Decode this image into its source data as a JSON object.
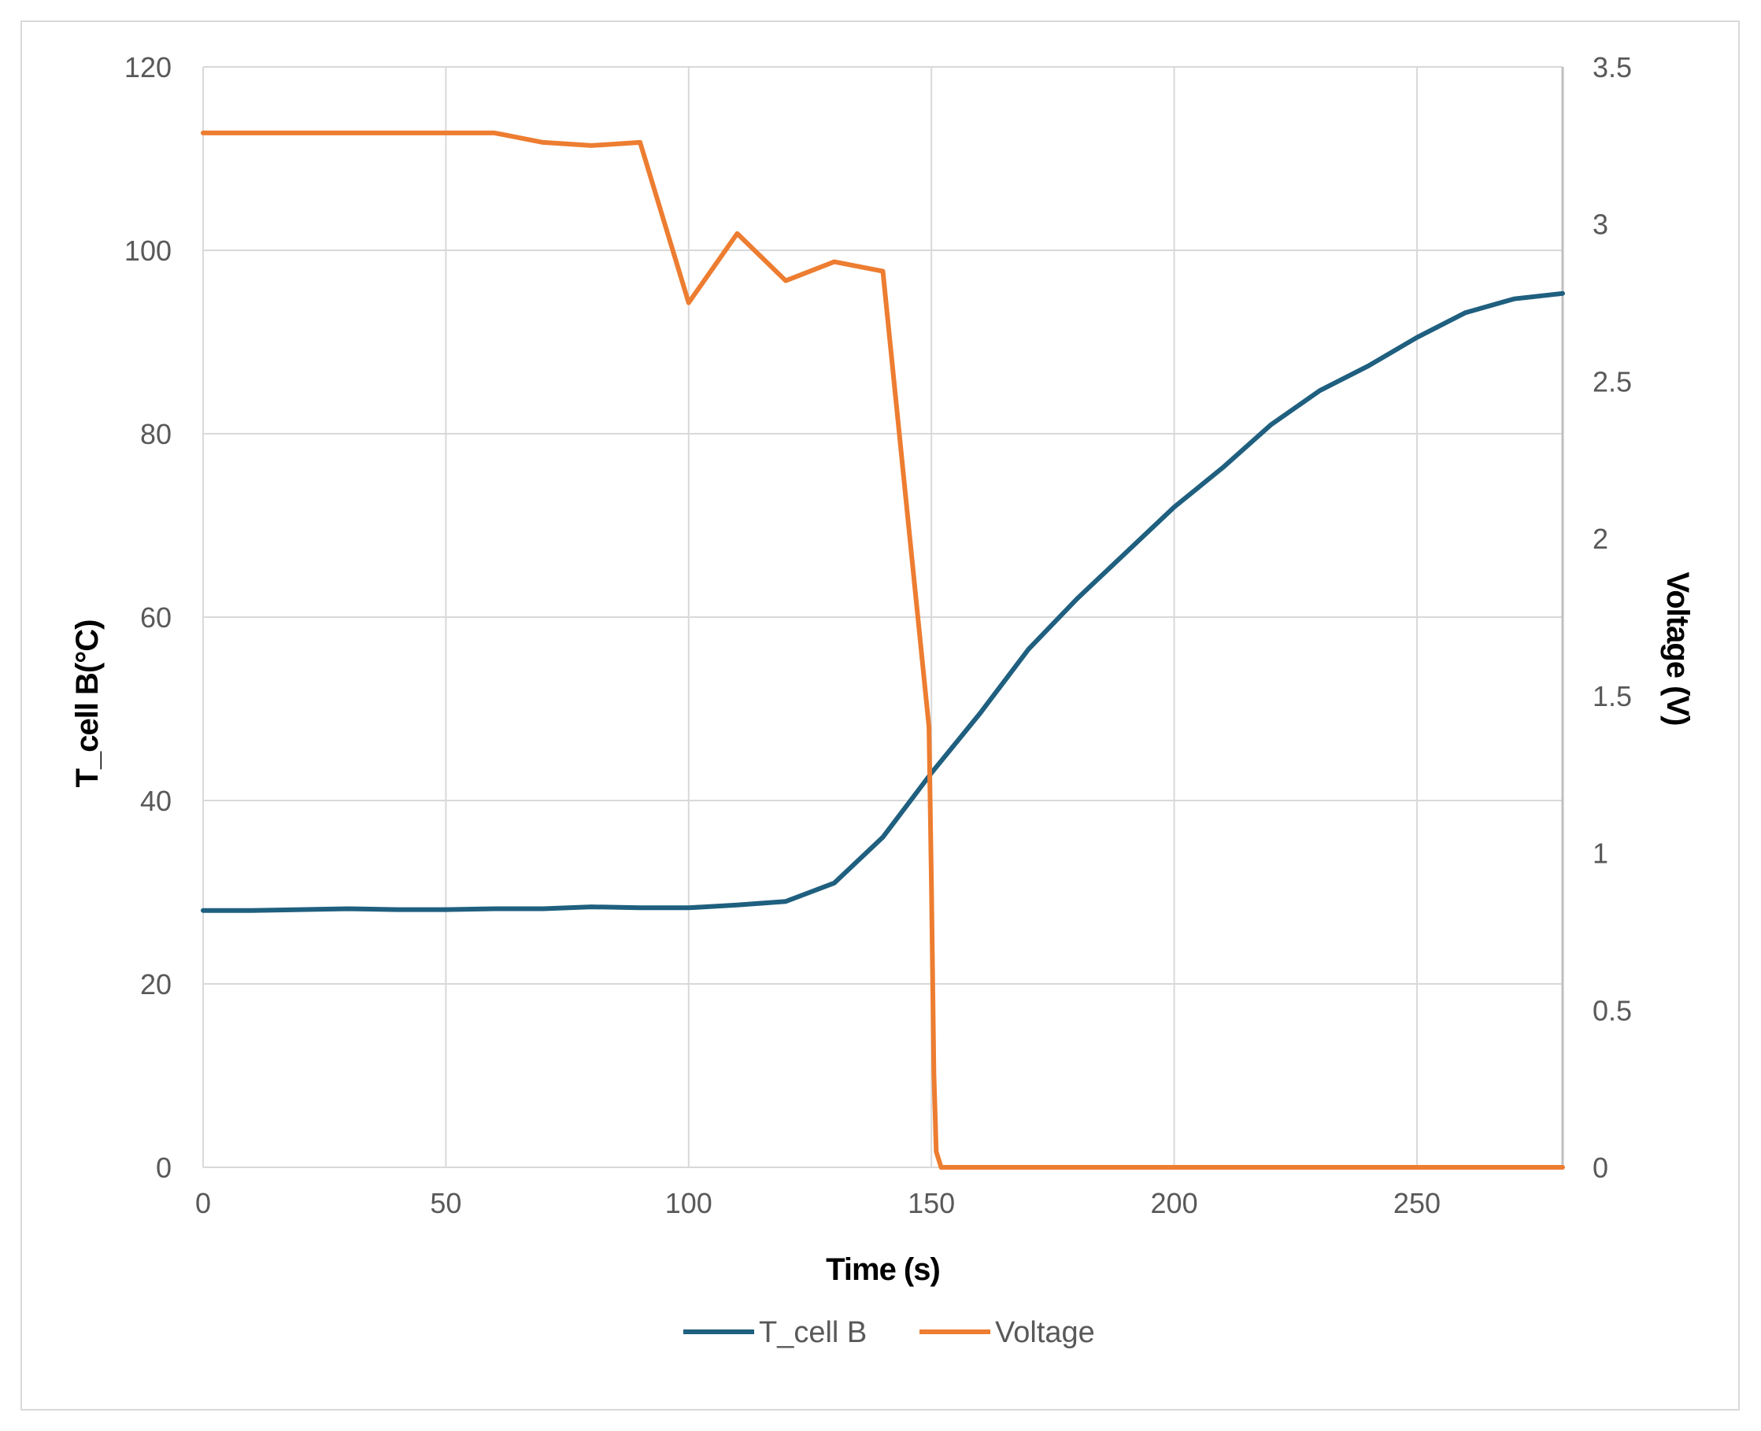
{
  "chart_data": {
    "type": "line",
    "title": "",
    "xlabel": "Time (s)",
    "ylabel": "T_cell B(°C)",
    "y2label": "Voltage (V)",
    "xlim": [
      0,
      280
    ],
    "ylim": [
      0,
      120
    ],
    "y2lim": [
      0,
      3.5
    ],
    "xticks": [
      0,
      50,
      100,
      150,
      200,
      250
    ],
    "yticks": [
      0,
      20,
      40,
      60,
      80,
      100,
      120
    ],
    "y2ticks": [
      "0",
      "0.5",
      "1",
      "1.5",
      "2",
      "2.5",
      "3",
      "3.5"
    ],
    "grid": true,
    "legend_position": "bottom",
    "series": [
      {
        "name": "T_cell B",
        "axis": "left",
        "color": "#1f5f7f",
        "x": [
          0,
          10,
          20,
          30,
          40,
          50,
          60,
          70,
          80,
          90,
          100,
          110,
          120,
          130,
          140,
          150,
          160,
          170,
          180,
          190,
          200,
          210,
          220,
          230,
          240,
          250,
          260,
          270,
          280
        ],
        "y": [
          28.0,
          28.0,
          28.1,
          28.2,
          28.1,
          28.1,
          28.2,
          28.2,
          28.4,
          28.3,
          28.3,
          28.6,
          29.0,
          31.0,
          36.0,
          43.0,
          49.5,
          56.5,
          62.0,
          67.0,
          72.0,
          76.3,
          81.0,
          84.7,
          87.4,
          90.5,
          93.2,
          94.7,
          95.3
        ]
      },
      {
        "name": "Voltage",
        "axis": "right",
        "color": "#ed7d31",
        "x": [
          0,
          10,
          20,
          30,
          40,
          50,
          60,
          70,
          80,
          90,
          100,
          110,
          120,
          130,
          140,
          149.5,
          150,
          150.5,
          151,
          152,
          160,
          170,
          180,
          190,
          200,
          210,
          220,
          230,
          240,
          250,
          260,
          270,
          280
        ],
        "y": [
          3.29,
          3.29,
          3.29,
          3.29,
          3.29,
          3.29,
          3.29,
          3.26,
          3.25,
          3.26,
          2.75,
          2.97,
          2.82,
          2.88,
          2.85,
          1.4,
          0.9,
          0.3,
          0.05,
          0.0,
          0.0,
          0.0,
          0.0,
          0.0,
          0.0,
          0.0,
          0.0,
          0.0,
          0.0,
          0.0,
          0.0,
          0.0,
          0.0
        ]
      }
    ]
  }
}
